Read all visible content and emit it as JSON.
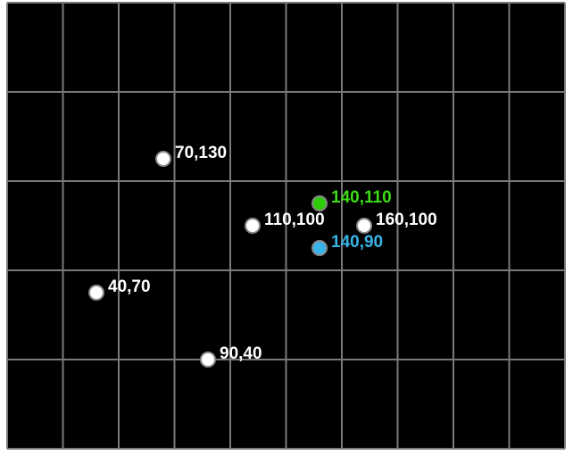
{
  "chart_data": {
    "type": "scatter",
    "title": "",
    "xlabel": "",
    "ylabel": "",
    "xlim": [
      0,
      250
    ],
    "ylim": [
      0,
      200
    ],
    "grid": true,
    "grid_step_x": 25,
    "grid_step_y": 40,
    "background_color": "#000000",
    "grid_color": "#7a7a7a",
    "points": [
      {
        "label": "70,130",
        "x": 70,
        "y": 130,
        "color": "#ffffff",
        "label_color": "#ffffff"
      },
      {
        "label": "140,110",
        "x": 140,
        "y": 110,
        "color": "#2ecc0a",
        "label_color": "#3ddc14"
      },
      {
        "label": "110,100",
        "x": 110,
        "y": 100,
        "color": "#ffffff",
        "label_color": "#ffffff"
      },
      {
        "label": "160,100",
        "x": 160,
        "y": 100,
        "color": "#ffffff",
        "label_color": "#ffffff"
      },
      {
        "label": "140,90",
        "x": 140,
        "y": 90,
        "color": "#38b4e8",
        "label_color": "#38b4e8"
      },
      {
        "label": "40,70",
        "x": 40,
        "y": 70,
        "color": "#ffffff",
        "label_color": "#ffffff"
      },
      {
        "label": "90,40",
        "x": 90,
        "y": 40,
        "color": "#ffffff",
        "label_color": "#ffffff"
      }
    ]
  }
}
